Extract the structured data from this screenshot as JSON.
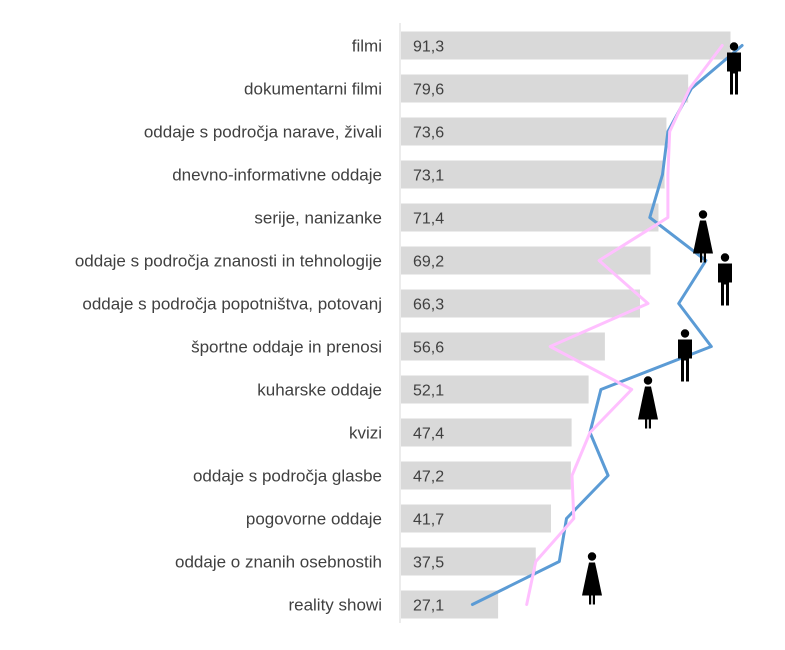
{
  "chart_data": {
    "type": "bar",
    "orientation": "horizontal",
    "categories": [
      "filmi",
      "dokumentarni filmi",
      "oddaje s področja narave, živali",
      "dnevno-informativne oddaje",
      "serije, nanizanke",
      "oddaje s področja znanosti in tehnologije",
      "oddaje s področja popotništva, potovanj",
      "športne oddaje in prenosi",
      "kuharske oddaje",
      "kvizi",
      "oddaje s področja glasbe",
      "pogovorne oddaje",
      "oddaje o znanih osebnostih",
      "reality showi"
    ],
    "values": [
      91.3,
      79.6,
      73.6,
      73.1,
      71.4,
      69.2,
      66.3,
      56.6,
      52.1,
      47.4,
      47.2,
      41.7,
      37.5,
      27.1
    ],
    "value_labels": [
      "91,3",
      "79,6",
      "73,6",
      "73,1",
      "71,4",
      "69,2",
      "66,3",
      "56,6",
      "52,1",
      "47,4",
      "47,2",
      "41,7",
      "37,5",
      "27,1"
    ],
    "series": [
      {
        "values": [
          94.5,
          80.5,
          74.0,
          72.5,
          69.0,
          84.5,
          77.0,
          86.0,
          55.5,
          52.5,
          57.5,
          46.0,
          44.0,
          20.0
        ]
      },
      {
        "values": [
          89.0,
          80.0,
          74.5,
          74.0,
          74.0,
          55.0,
          68.5,
          41.5,
          64.0,
          52.5,
          47.5,
          48.0,
          37.5,
          35.0
        ]
      }
    ],
    "xlim": [
      0,
      100
    ],
    "grid": false,
    "legend": "none",
    "colors": {
      "bar": "#d9d9d9",
      "series_1": "#5b9bd5",
      "series_2": "#ffc0ff",
      "axis": "#d9d9d9",
      "text": "#404040",
      "icon": "#000000"
    },
    "icons": [
      {
        "name": "male-figure-icon",
        "row": 0
      },
      {
        "name": "female-figure-icon",
        "row": 4
      },
      {
        "name": "male-figure-icon",
        "row": 5
      },
      {
        "name": "male-figure-icon",
        "row": 7
      },
      {
        "name": "female-figure-icon",
        "row": 8
      },
      {
        "name": "female-figure-icon",
        "row": 12
      }
    ]
  }
}
